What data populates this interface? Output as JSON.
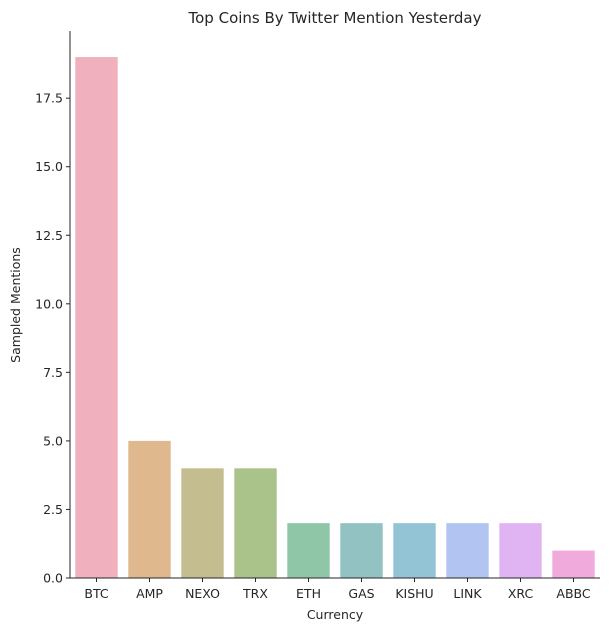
{
  "chart_data": {
    "type": "bar",
    "title": "Top Coins By Twitter Mention Yesterday",
    "xlabel": "Currency",
    "ylabel": "Sampled Mentions",
    "categories": [
      "BTC",
      "AMP",
      "NEXO",
      "TRX",
      "ETH",
      "GAS",
      "KISHU",
      "LINK",
      "XRC",
      "ABBC"
    ],
    "values": [
      19,
      5,
      4,
      4,
      2,
      2,
      2,
      2,
      2,
      1
    ],
    "colors": [
      "#f0b0be",
      "#dfb88e",
      "#c4bd8f",
      "#a9c38a",
      "#8fc6a8",
      "#92c3c2",
      "#93c4d6",
      "#b2c4f2",
      "#e0b4f2",
      "#f0aadc"
    ],
    "ylim": [
      0,
      19.95
    ],
    "yticks": [
      0.0,
      2.5,
      5.0,
      7.5,
      10.0,
      12.5,
      15.0,
      17.5
    ],
    "grid": false,
    "legend": "none"
  }
}
